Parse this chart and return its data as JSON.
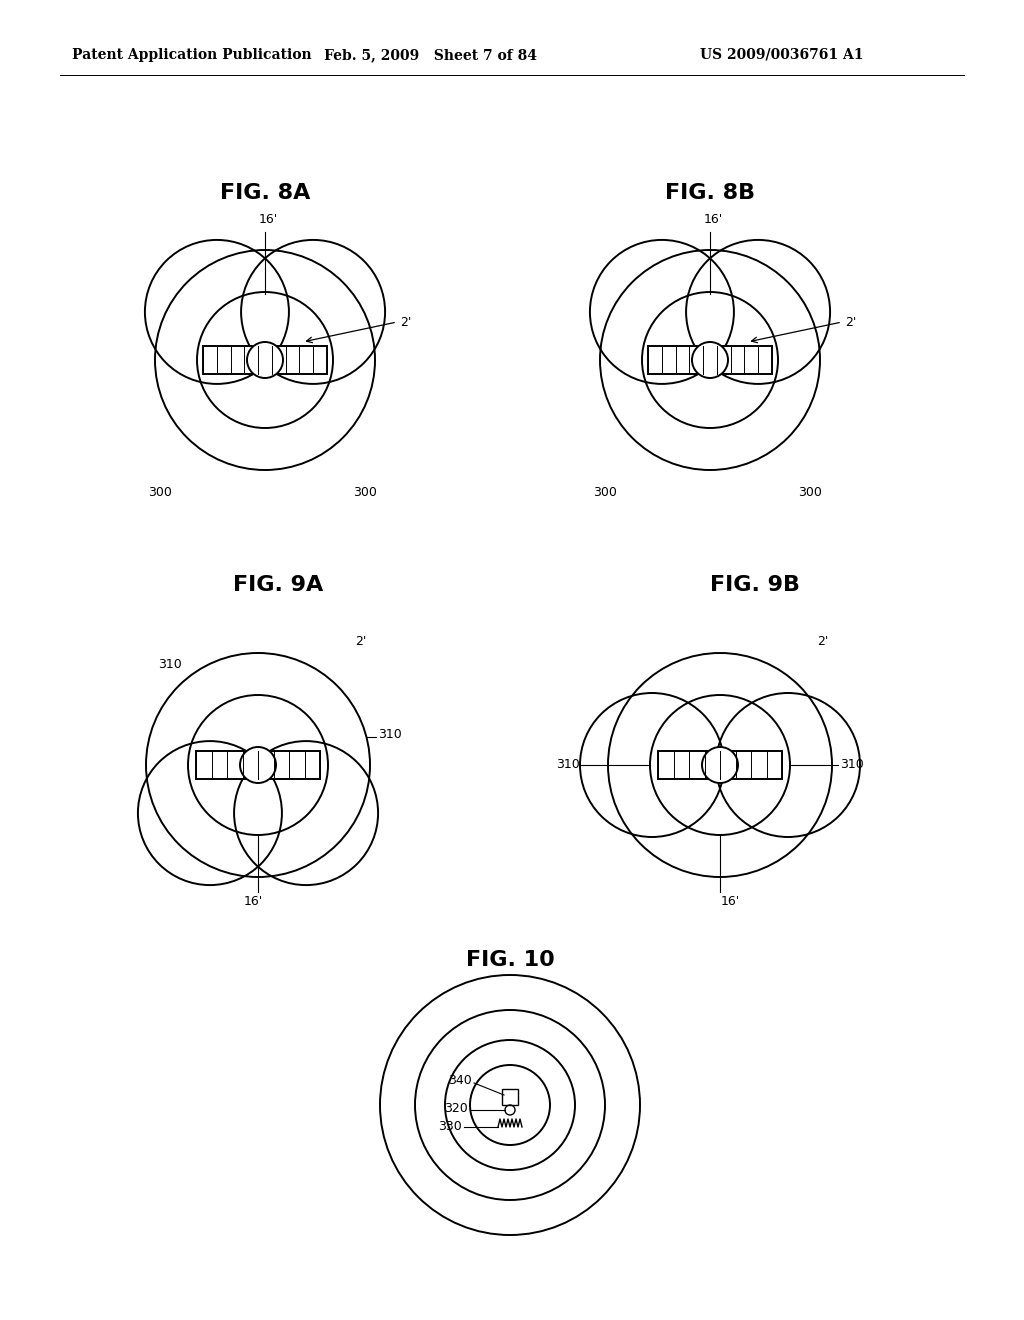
{
  "bg_color": "#ffffff",
  "header_left": "Patent Application Publication",
  "header_mid": "Feb. 5, 2009   Sheet 7 of 84",
  "header_right": "US 2009/0036761 A1",
  "fig8a_title": "FIG. 8A",
  "fig8b_title": "FIG. 8B",
  "fig9a_title": "FIG. 9A",
  "fig9b_title": "FIG. 9B",
  "fig10_title": "FIG. 10",
  "line_color": "#000000",
  "line_width": 1.4,
  "thin_lw": 0.8
}
